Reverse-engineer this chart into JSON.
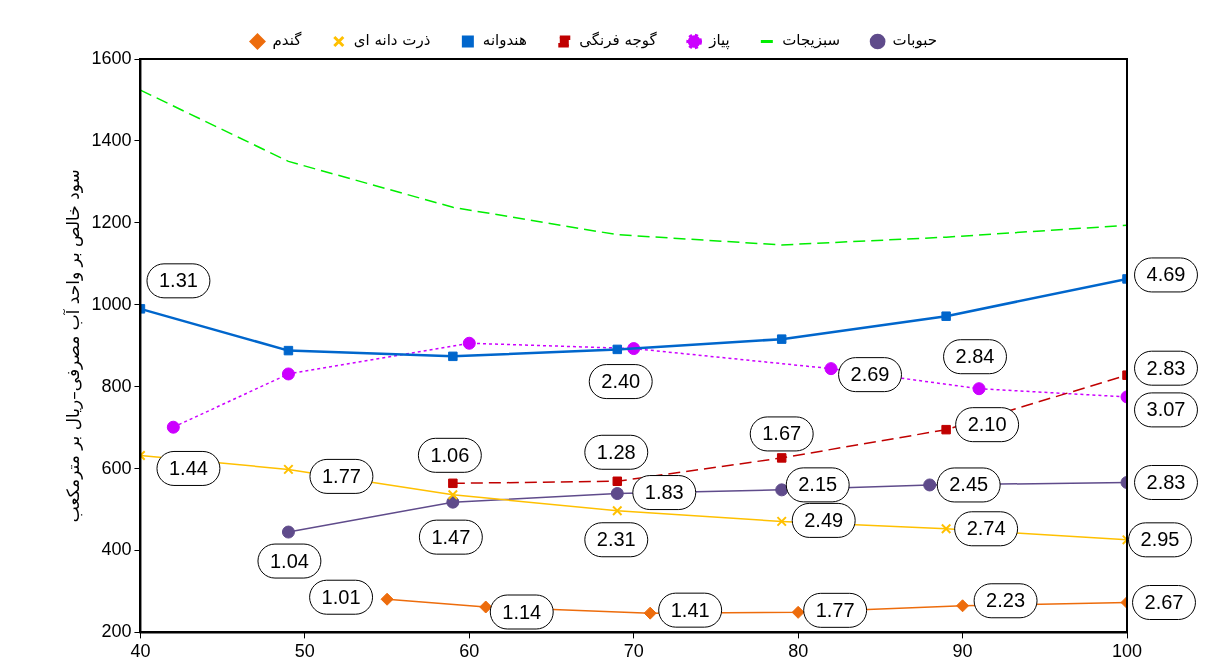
{
  "chart_data": {
    "type": "line",
    "ylabel": "سود خالص بر واحد آب مصرفی–ریال بر مترمکعب",
    "xlim": [
      40,
      100
    ],
    "xticks": [
      40,
      50,
      60,
      70,
      80,
      90,
      100
    ],
    "ylim": [
      200,
      1600
    ],
    "yticks": [
      200,
      400,
      600,
      800,
      1000,
      1200,
      1400,
      1600
    ],
    "grid": false,
    "legend": "top",
    "series": [
      {
        "name": "گندم",
        "color": "#ed6c0c",
        "marker": "diamond",
        "line_style": "solid",
        "x": [
          55,
          61,
          71,
          80,
          90,
          100
        ],
        "values": [
          281,
          262,
          247,
          249,
          265,
          273
        ]
      },
      {
        "name": "ذرت دانه ای",
        "color": "#ffc000",
        "marker": "cross",
        "line_style": "solid",
        "x": [
          40,
          49,
          59,
          69,
          79,
          89,
          100
        ],
        "values": [
          632,
          598,
          536,
          497,
          471,
          453,
          426
        ]
      },
      {
        "name": "هندوانه",
        "color": "#0066cc",
        "marker": "square",
        "line_style": "solid",
        "x": [
          40,
          49,
          59,
          69,
          79,
          89,
          100
        ],
        "values": [
          990,
          888,
          874,
          891,
          916,
          972,
          1063
        ]
      },
      {
        "name": "گوجه فرنگی",
        "color": "#c00000",
        "marker": "square",
        "line_style": "dashed",
        "x": [
          59,
          69,
          79,
          89,
          100
        ],
        "values": [
          564,
          569,
          626,
          695,
          828
        ]
      },
      {
        "name": "پیاز",
        "color": "#cc00ff",
        "marker": "circle",
        "line_style": "dotted",
        "x": [
          42,
          49,
          60,
          70,
          82,
          91,
          100
        ],
        "values": [
          701,
          831,
          906,
          893,
          844,
          795,
          775
        ]
      },
      {
        "name": "سبزیجات",
        "color": "#00ee00",
        "marker": "none",
        "line_style": "dashed",
        "x": [
          40,
          49,
          59,
          69,
          79,
          89,
          100
        ],
        "values": [
          1524,
          1350,
          1238,
          1171,
          1146,
          1165,
          1194
        ]
      },
      {
        "name": "حبوبات",
        "color": "#5f4b8b",
        "marker": "circle",
        "line_style": "solid",
        "x": [
          49,
          59,
          69,
          79,
          88,
          100
        ],
        "values": [
          445,
          518,
          539,
          548,
          560,
          566
        ]
      }
    ],
    "annotations": [
      {
        "text": "1.31",
        "x": 40,
        "y": 990
      },
      {
        "text": "4.69",
        "x": 100,
        "y": 1063
      },
      {
        "text": "1.44",
        "x": 40,
        "y": 632
      },
      {
        "text": "1.77",
        "x": 49,
        "y": 598
      },
      {
        "text": "1.06",
        "x": 59,
        "y": 564
      },
      {
        "text": "1.28",
        "x": 69,
        "y": 569
      },
      {
        "text": "1.67",
        "x": 79,
        "y": 626
      },
      {
        "text": "2.10",
        "x": 89,
        "y": 695
      },
      {
        "text": "2.83",
        "x": 100,
        "y": 828
      },
      {
        "text": "3.07",
        "x": 100,
        "y": 775
      },
      {
        "text": "2.84",
        "x": 91,
        "y": 795
      },
      {
        "text": "2.69",
        "x": 82,
        "y": 844
      },
      {
        "text": "2.40",
        "x": 70,
        "y": 893
      },
      {
        "text": "2.83",
        "x": 100,
        "y": 566
      },
      {
        "text": "2.45",
        "x": 88,
        "y": 560
      },
      {
        "text": "2.15",
        "x": 79,
        "y": 548
      },
      {
        "text": "1.83",
        "x": 69,
        "y": 539
      },
      {
        "text": "1.47",
        "x": 59,
        "y": 518
      },
      {
        "text": "1.04",
        "x": 49,
        "y": 445
      },
      {
        "text": "2.31",
        "x": 69,
        "y": 497
      },
      {
        "text": "2.49",
        "x": 79,
        "y": 471
      },
      {
        "text": "2.74",
        "x": 89,
        "y": 453
      },
      {
        "text": "2.95",
        "x": 100,
        "y": 426
      },
      {
        "text": "1.01",
        "x": 55,
        "y": 281
      },
      {
        "text": "1.14",
        "x": 61,
        "y": 262
      },
      {
        "text": "1.41",
        "x": 71,
        "y": 247
      },
      {
        "text": "1.77",
        "x": 80,
        "y": 249
      },
      {
        "text": "2.23",
        "x": 90,
        "y": 265
      },
      {
        "text": "2.67",
        "x": 100,
        "y": 273
      }
    ]
  }
}
